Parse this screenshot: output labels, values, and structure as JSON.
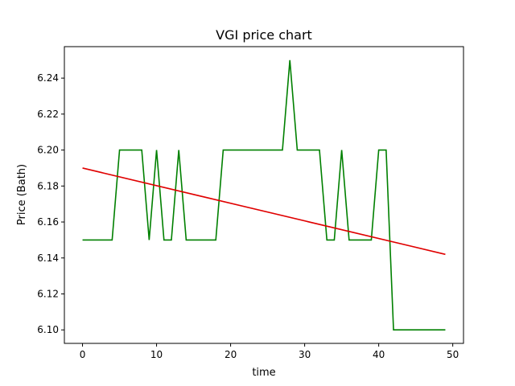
{
  "chart_data": {
    "type": "line",
    "title": "VGI price chart",
    "xlabel": "time",
    "ylabel": "Price (Bath)",
    "xlim": [
      -2.45,
      51.45
    ],
    "ylim": [
      6.0925,
      6.2575
    ],
    "xticks": [
      0,
      10,
      20,
      30,
      40,
      50
    ],
    "yticks": [
      6.1,
      6.12,
      6.14,
      6.16,
      6.18,
      6.2,
      6.22,
      6.24
    ],
    "grid": false,
    "series": [
      {
        "color": "#008000",
        "x": [
          0,
          1,
          2,
          3,
          4,
          5,
          6,
          7,
          8,
          9,
          10,
          11,
          12,
          13,
          14,
          15,
          16,
          17,
          18,
          19,
          20,
          21,
          22,
          23,
          24,
          25,
          26,
          27,
          28,
          29,
          30,
          31,
          32,
          33,
          34,
          35,
          36,
          37,
          38,
          39,
          40,
          41,
          42,
          43,
          44,
          45,
          46,
          47,
          48,
          49
        ],
        "y": [
          6.15,
          6.15,
          6.15,
          6.15,
          6.15,
          6.2,
          6.2,
          6.2,
          6.2,
          6.15,
          6.2,
          6.15,
          6.15,
          6.2,
          6.15,
          6.15,
          6.15,
          6.15,
          6.15,
          6.2,
          6.2,
          6.2,
          6.2,
          6.2,
          6.2,
          6.2,
          6.2,
          6.2,
          6.25,
          6.2,
          6.2,
          6.2,
          6.2,
          6.15,
          6.15,
          6.2,
          6.15,
          6.15,
          6.15,
          6.15,
          6.2,
          6.2,
          6.1,
          6.1,
          6.1,
          6.1,
          6.1,
          6.1,
          6.1,
          6.1
        ]
      },
      {
        "color": "#e00000",
        "x": [
          0,
          49
        ],
        "y": [
          6.19,
          6.142
        ]
      }
    ]
  }
}
